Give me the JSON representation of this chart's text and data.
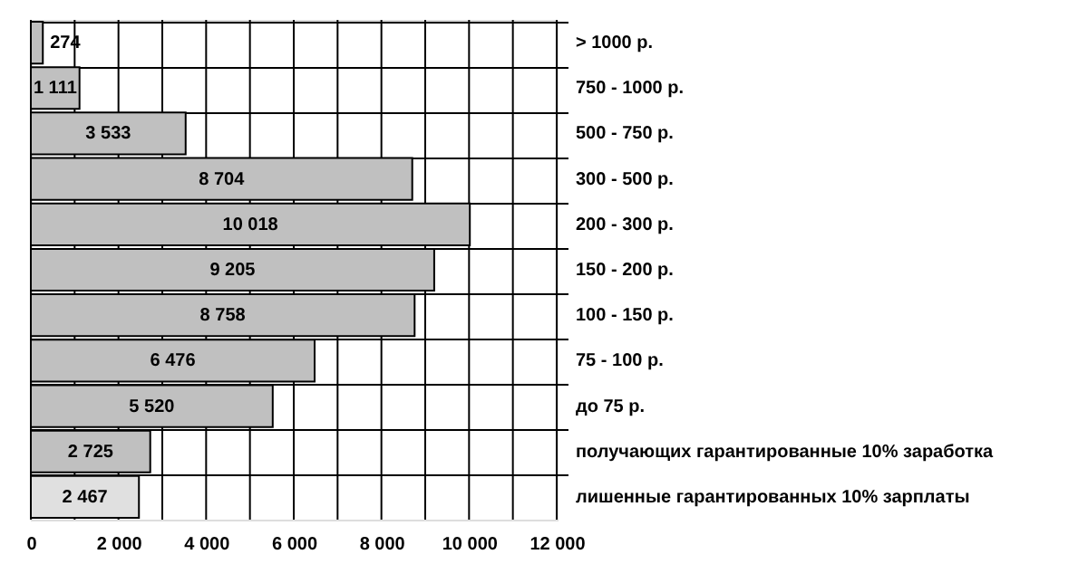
{
  "chart_data": {
    "type": "bar",
    "orientation": "horizontal",
    "categories": [
      "> 1000 р.",
      "750 - 1000 р.",
      "500 - 750 р.",
      "300 - 500 р.",
      "200 - 300 р.",
      "150 - 200 р.",
      "100 - 150 р.",
      "75 - 100 р.",
      "до 75 р.",
      "получающих гарантированные 10% заработка",
      "лишенные гарантированных 10% зарплаты"
    ],
    "values": [
      274,
      1111,
      3533,
      8704,
      10018,
      9205,
      8758,
      6476,
      5520,
      2725,
      2467
    ],
    "value_labels": [
      "274",
      "1 111",
      "3 533",
      "8 704",
      "10 018",
      "9 205",
      "8 758",
      "6 476",
      "5 520",
      "2 725",
      "2 467"
    ],
    "colors": [
      "#c0c0c0",
      "#c0c0c0",
      "#c0c0c0",
      "#c0c0c0",
      "#c0c0c0",
      "#c0c0c0",
      "#c0c0c0",
      "#c0c0c0",
      "#c0c0c0",
      "#c0c0c0",
      "#e0e0e0"
    ],
    "xlim": [
      0,
      12000
    ],
    "xticks": [
      0,
      {
        "value": 1000,
        "label": null
      },
      {
        "value": 2000,
        "label": "2 000"
      },
      {
        "value": 3000,
        "label": null
      },
      {
        "value": 4000,
        "label": "4 000"
      },
      {
        "value": 5000,
        "label": null
      },
      {
        "value": 6000,
        "label": "6 000"
      },
      {
        "value": 7000,
        "label": null
      },
      {
        "value": 8000,
        "label": "8 000"
      },
      {
        "value": 9000,
        "label": null
      },
      {
        "value": 10000,
        "label": "10 000"
      },
      {
        "value": 11000,
        "label": null
      },
      {
        "value": 12000,
        "label": "12 000"
      }
    ],
    "grid": true
  }
}
